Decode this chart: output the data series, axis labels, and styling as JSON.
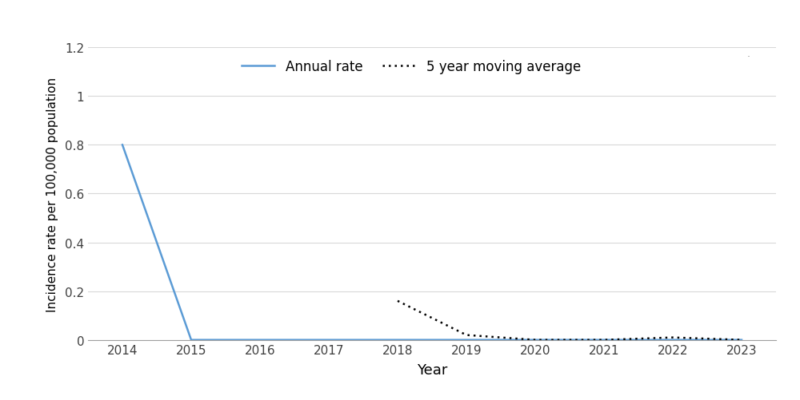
{
  "years": [
    2014,
    2015,
    2016,
    2017,
    2018,
    2019,
    2020,
    2021,
    2022,
    2023
  ],
  "annual_rate": [
    0.8,
    0.0,
    0.0,
    0.0,
    0.0,
    0.0,
    0.0,
    0.0,
    0.0,
    0.0
  ],
  "moving_avg_years": [
    2018,
    2019,
    2020,
    2021,
    2022,
    2023
  ],
  "moving_avg": [
    0.16,
    0.02,
    0.0,
    0.0,
    0.01,
    0.0
  ],
  "annual_rate_color": "#5B9BD5",
  "moving_avg_color": "#000000",
  "xlabel": "Year",
  "ylabel": "Incidence rate per 100,000 population",
  "ylim": [
    0,
    1.2
  ],
  "yticks": [
    0,
    0.2,
    0.4,
    0.6,
    0.8,
    1.0,
    1.2
  ],
  "ytick_labels": [
    "0",
    "0.2",
    "0.4",
    "0.6",
    "0.8",
    "1",
    "1.2"
  ],
  "xticks": [
    2014,
    2015,
    2016,
    2017,
    2018,
    2019,
    2020,
    2021,
    2022,
    2023
  ],
  "legend_annual": "Annual rate",
  "legend_moving": "5 year moving average",
  "line_width": 1.8,
  "background_color": "#ffffff",
  "axis_color": "#a0a0a0",
  "grid_color": "#d8d8d8"
}
